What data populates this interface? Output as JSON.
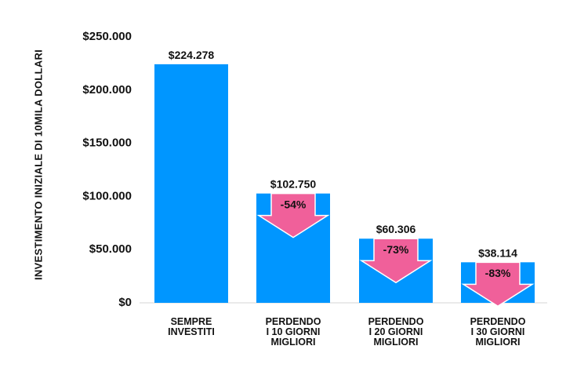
{
  "chart_data": {
    "type": "bar",
    "title": "",
    "ylabel": "INVESTIMENTO INIZIALE DI 10MILA DOLLARI",
    "xlabel": "",
    "ylim": [
      0,
      250000
    ],
    "yticks": [
      0,
      50000,
      100000,
      150000,
      200000,
      250000
    ],
    "ytick_labels": [
      "$0",
      "$50.000",
      "$100.000",
      "$150.000",
      "$200.000",
      "$250.000"
    ],
    "categories": [
      [
        "SEMPRE",
        "INVESTITI"
      ],
      [
        "PERDENDO",
        "I 10 GIORNI",
        "MIGLIORI"
      ],
      [
        "PERDENDO",
        "I 20 GIORNI",
        "MIGLIORI"
      ],
      [
        "PERDENDO",
        "I 30 GIORNI",
        "MIGLIORI"
      ]
    ],
    "values": [
      224278,
      102750,
      60306,
      38114
    ],
    "value_labels": [
      "$224.278",
      "$102.750",
      "$60.306",
      "$38.114"
    ],
    "change_labels": [
      "",
      "-54%",
      "-73%",
      "-83%"
    ],
    "grid": false,
    "legend": "none",
    "colors": {
      "bar": "#0096FF",
      "arrow": "#F0609A",
      "text": "#111111",
      "axis": "#E4E4E4"
    }
  }
}
